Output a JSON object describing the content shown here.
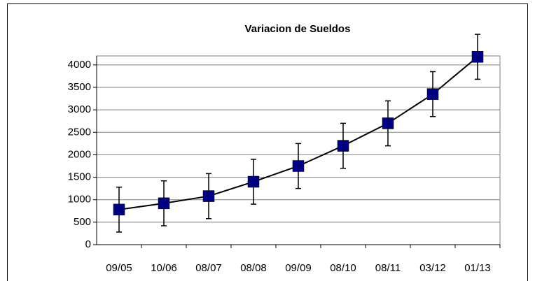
{
  "chart_data": {
    "type": "line",
    "title": "Variacion de Sueldos",
    "categories": [
      "09/05",
      "10/06",
      "08/07",
      "08/08",
      "09/09",
      "08/10",
      "08/11",
      "03/12",
      "01/13"
    ],
    "series": [
      {
        "color": "#000080",
        "values": [
          780,
          920,
          1080,
          1400,
          1750,
          2200,
          2700,
          3350,
          4180
        ],
        "errors": [
          500,
          500,
          500,
          500,
          500,
          500,
          500,
          500,
          500
        ]
      }
    ],
    "ylim": [
      0,
      4200
    ],
    "yticks": [
      0,
      500,
      1000,
      1500,
      2000,
      2500,
      3000,
      3500,
      4000
    ],
    "grid": true
  }
}
